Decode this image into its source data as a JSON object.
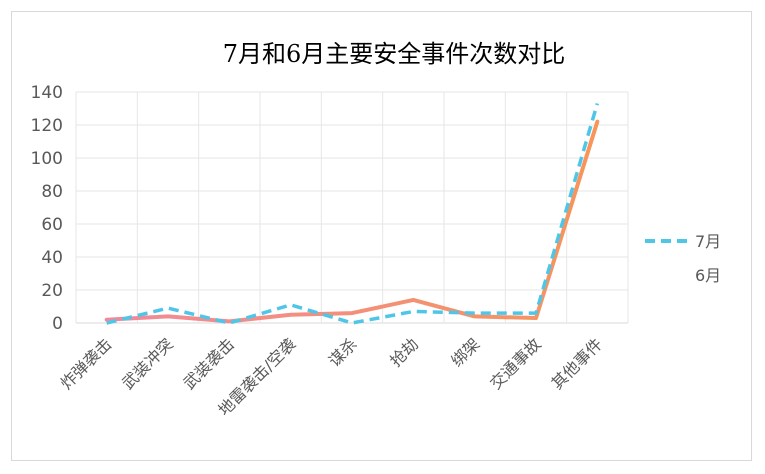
{
  "chart_data": {
    "type": "line",
    "title": "7月和6月主要安全事件次数对比",
    "categories": [
      "炸弹袭击",
      "武装冲突",
      "武装袭击",
      "地雷袭击/空袭",
      "谋杀",
      "抢劫",
      "绑架",
      "交通事故",
      "其他事件"
    ],
    "series": [
      {
        "name": "7月",
        "values": [
          0,
          9,
          0,
          11,
          0,
          7,
          6,
          6,
          133
        ],
        "color": "#4fc6e8",
        "style": "dashed"
      },
      {
        "name": "6月",
        "values": [
          2,
          4,
          1,
          5,
          6,
          14,
          4,
          3,
          122
        ],
        "color_start": "#f08a9a",
        "color_end": "#f7955a",
        "style": "solid"
      }
    ],
    "yticks": [
      "0",
      "20",
      "40",
      "60",
      "80",
      "100",
      "120",
      "140"
    ],
    "ylim": [
      0,
      140
    ],
    "grid": true,
    "legend_position": "right"
  }
}
